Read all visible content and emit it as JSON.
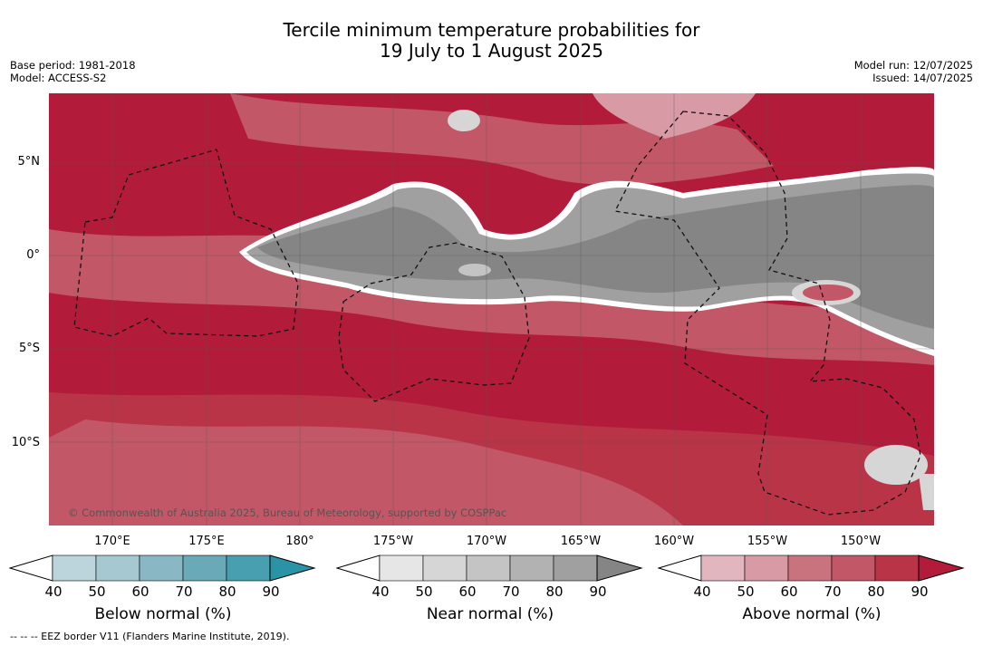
{
  "title_line1": "Tercile minimum temperature probabilities for",
  "title_line2": "19 July to 1 August 2025",
  "meta_left": {
    "base_period": "Base period: 1981-2018",
    "model": "Model: ACCESS-S2"
  },
  "meta_right": {
    "model_run": "Model run: 12/07/2025",
    "issued": "Issued: 14/07/2025"
  },
  "map": {
    "lat_labels": [
      "5°N",
      "0°",
      "5°S",
      "10°S"
    ],
    "lon_labels": [
      "170°E",
      "175°E",
      "180°",
      "175°W",
      "170°W",
      "165°W",
      "160°W",
      "155°W",
      "150°W"
    ],
    "copyright": "© Commonwealth of Australia 2025, Bureau of Meteorology, supported by COSPPac"
  },
  "colorbars": [
    {
      "label": "Below normal (%)",
      "ticks": [
        "40",
        "50",
        "60",
        "70",
        "80",
        "90"
      ],
      "colors": [
        "#bcd4dc",
        "#a5c8d1",
        "#89b8c4",
        "#6aa9b7",
        "#489fb0",
        "#2b93a6"
      ]
    },
    {
      "label": "Near normal (%)",
      "ticks": [
        "40",
        "50",
        "60",
        "70",
        "80",
        "90"
      ],
      "colors": [
        "#e6e6e6",
        "#d6d6d6",
        "#c4c4c4",
        "#b2b2b2",
        "#a0a0a0",
        "#858585"
      ]
    },
    {
      "label": "Above normal (%)",
      "ticks": [
        "40",
        "50",
        "60",
        "70",
        "80",
        "90"
      ],
      "colors": [
        "#e2b6bf",
        "#d89aa5",
        "#c9737f",
        "#c25867",
        "#ba3448",
        "#b31b3a"
      ]
    }
  ],
  "legend_note": "--  --  -- EEZ border V11 (Flanders Marine Institute, 2019)."
}
